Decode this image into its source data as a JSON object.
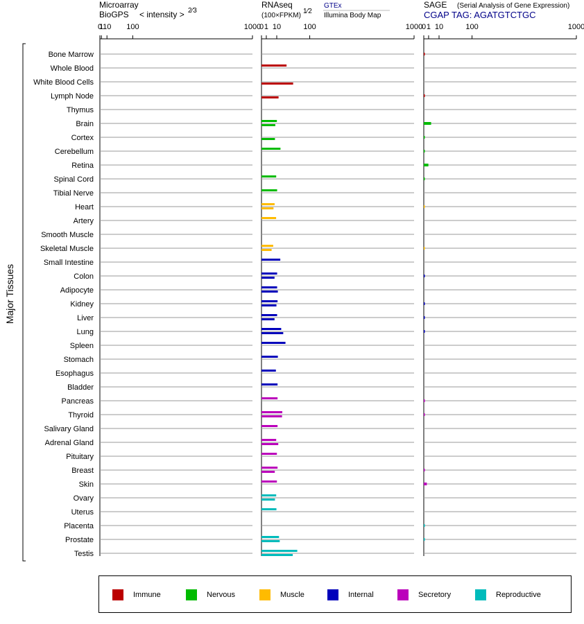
{
  "header": {
    "microarray_title": "Microarray",
    "microarray_sub": "BioGPS",
    "microarray_unit": "< intensity >",
    "microarray_exp": "2⁄3",
    "rnaseq_title": "RNAseq",
    "rnaseq_unit": "(100×FPKM)",
    "rnaseq_exp": "1⁄2",
    "gtex_label": "GTEx",
    "ibm_label": "Illumina Body Map",
    "sage_title": "SAGE",
    "sage_sub": "(Serial Analysis of Gene Expression)",
    "sage_tag": "CGAP TAG: AGATGTCTGC",
    "y_group_label": "Major Tissues"
  },
  "chart_data": {
    "type": "bar",
    "orientation": "horizontal",
    "x_scale": "power",
    "xlim": [
      0,
      1000
    ],
    "ticks": [
      0,
      1,
      10,
      100,
      1000
    ],
    "tick_labels": [
      "0",
      "1",
      "10",
      "100",
      "1000"
    ],
    "panels": [
      {
        "key": "microarray",
        "exponent": 0.6667
      },
      {
        "key": "rnaseq",
        "exponent": 0.5
      },
      {
        "key": "sage",
        "exponent": 0.5
      }
    ],
    "categories": [
      "Immune",
      "Nervous",
      "Muscle",
      "Internal",
      "Secretory",
      "Reproductive"
    ],
    "category_colors": {
      "Immune": "#bb0000",
      "Nervous": "#00bb00",
      "Muscle": "#ffbb00",
      "Internal": "#0000bb",
      "Secretory": "#bb00bb",
      "Reproductive": "#00bbbb"
    },
    "tissues": [
      {
        "name": "Bone Marrow",
        "cat": "Immune",
        "gtex": null,
        "ibm": null,
        "sage": 0.02
      },
      {
        "name": "Whole Blood",
        "cat": "Immune",
        "gtex": 27,
        "ibm": null,
        "sage": null
      },
      {
        "name": "White Blood Cells",
        "cat": "Immune",
        "gtex": null,
        "ibm": 43,
        "sage": null
      },
      {
        "name": "Lymph Node",
        "cat": "Immune",
        "gtex": null,
        "ibm": 12.5,
        "sage": 0.02
      },
      {
        "name": "Thymus",
        "cat": "Immune",
        "gtex": null,
        "ibm": null,
        "sage": null
      },
      {
        "name": "Brain",
        "cat": "Nervous",
        "gtex": 10.2,
        "ibm": 8.2,
        "sage": 2.3
      },
      {
        "name": "Cortex",
        "cat": "Nervous",
        "gtex": null,
        "ibm": 7.8,
        "sage": 0.02
      },
      {
        "name": "Cerebellum",
        "cat": "Nervous",
        "gtex": 15.5,
        "ibm": null,
        "sage": 0.02
      },
      {
        "name": "Retina",
        "cat": "Nervous",
        "gtex": null,
        "ibm": null,
        "sage": 0.9
      },
      {
        "name": "Spinal Cord",
        "cat": "Nervous",
        "gtex": 9.3,
        "ibm": null,
        "sage": 0.02
      },
      {
        "name": "Tibial Nerve",
        "cat": "Nervous",
        "gtex": 10.5,
        "ibm": null,
        "sage": null
      },
      {
        "name": "Heart",
        "cat": "Muscle",
        "gtex": 7.4,
        "ibm": 6.2,
        "sage": 0.01
      },
      {
        "name": "Artery",
        "cat": "Muscle",
        "gtex": 9.2,
        "ibm": null,
        "sage": null
      },
      {
        "name": "Smooth Muscle",
        "cat": "Muscle",
        "gtex": null,
        "ibm": null,
        "sage": null
      },
      {
        "name": "Skeletal Muscle",
        "cat": "Muscle",
        "gtex": 5.9,
        "ibm": 4.4,
        "sage": 0.01
      },
      {
        "name": "Small Intestine",
        "cat": "Internal",
        "gtex": 15.2,
        "ibm": null,
        "sage": null
      },
      {
        "name": "Colon",
        "cat": "Internal",
        "gtex": 10.5,
        "ibm": 7.3,
        "sage": 0.02
      },
      {
        "name": "Adipocyte",
        "cat": "Internal",
        "gtex": 10.5,
        "ibm": 11.5,
        "sage": null
      },
      {
        "name": "Kidney",
        "cat": "Internal",
        "gtex": 11.1,
        "ibm": 9.6,
        "sage": 0.02
      },
      {
        "name": "Liver",
        "cat": "Internal",
        "gtex": 10.5,
        "ibm": 7.3,
        "sage": 0.02
      },
      {
        "name": "Lung",
        "cat": "Internal",
        "gtex": 16.7,
        "ibm": 20.3,
        "sage": 0.02
      },
      {
        "name": "Spleen",
        "cat": "Internal",
        "gtex": 24.7,
        "ibm": null,
        "sage": null
      },
      {
        "name": "Stomach",
        "cat": "Internal",
        "gtex": 11.5,
        "ibm": null,
        "sage": null
      },
      {
        "name": "Esophagus",
        "cat": "Internal",
        "gtex": 8.9,
        "ibm": null,
        "sage": null
      },
      {
        "name": "Bladder",
        "cat": "Internal",
        "gtex": 11.1,
        "ibm": null,
        "sage": null
      },
      {
        "name": "Pancreas",
        "cat": "Secretory",
        "gtex": 11.1,
        "ibm": null,
        "sage": 0.02
      },
      {
        "name": "Thyroid",
        "cat": "Secretory",
        "gtex": 18.6,
        "ibm": 18.1,
        "sage": 0.02
      },
      {
        "name": "Salivary Gland",
        "cat": "Secretory",
        "gtex": 11.1,
        "ibm": null,
        "sage": null
      },
      {
        "name": "Adrenal Gland",
        "cat": "Secretory",
        "gtex": 9.3,
        "ibm": 12.1,
        "sage": null
      },
      {
        "name": "Pituitary",
        "cat": "Secretory",
        "gtex": 10.2,
        "ibm": null,
        "sage": null
      },
      {
        "name": "Breast",
        "cat": "Secretory",
        "gtex": 11.1,
        "ibm": 7.6,
        "sage": 0.02
      },
      {
        "name": "Skin",
        "cat": "Secretory",
        "gtex": 10.2,
        "ibm": null,
        "sage": 0.4
      },
      {
        "name": "Ovary",
        "cat": "Reproductive",
        "gtex": 9.3,
        "ibm": 7.8,
        "sage": null
      },
      {
        "name": "Uterus",
        "cat": "Reproductive",
        "gtex": 9.6,
        "ibm": null,
        "sage": null
      },
      {
        "name": "Placenta",
        "cat": "Reproductive",
        "gtex": null,
        "ibm": null,
        "sage": 0.02
      },
      {
        "name": "Prostate",
        "cat": "Reproductive",
        "gtex": 13.2,
        "ibm": 14.3,
        "sage": 0.02
      },
      {
        "name": "Testis",
        "cat": "Reproductive",
        "gtex": 55,
        "ibm": 42,
        "sage": null
      }
    ]
  }
}
